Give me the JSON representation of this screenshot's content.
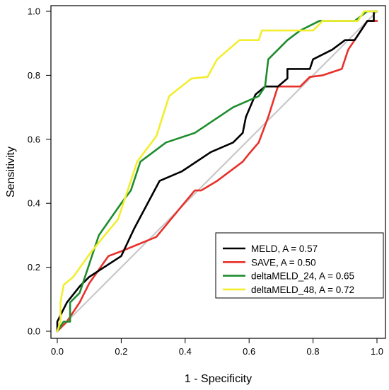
{
  "chart_data": {
    "type": "line",
    "title": "",
    "xlabel": "1 - Specificity",
    "ylabel": "Sensitivity",
    "xlim": [
      0,
      1
    ],
    "ylim": [
      0,
      1
    ],
    "xticks": [
      "0.0",
      "0.2",
      "0.4",
      "0.6",
      "0.8",
      "1.0"
    ],
    "yticks": [
      "0.0",
      "0.2",
      "0.4",
      "0.6",
      "0.8",
      "1.0"
    ],
    "grid": false,
    "legend_position": "bottom-right",
    "reference_line": {
      "color": "#c8c8c8",
      "points": [
        [
          0,
          0
        ],
        [
          1,
          1
        ]
      ]
    },
    "series": [
      {
        "name": "MELD, A = 0.57",
        "color": "#000000",
        "points": [
          [
            0,
            0
          ],
          [
            0,
            0.03
          ],
          [
            0.03,
            0.09
          ],
          [
            0.07,
            0.14
          ],
          [
            0.1,
            0.17
          ],
          [
            0.2,
            0.235
          ],
          [
            0.24,
            0.32
          ],
          [
            0.32,
            0.47
          ],
          [
            0.39,
            0.5
          ],
          [
            0.48,
            0.56
          ],
          [
            0.55,
            0.59
          ],
          [
            0.58,
            0.62
          ],
          [
            0.59,
            0.67
          ],
          [
            0.62,
            0.74
          ],
          [
            0.65,
            0.765
          ],
          [
            0.69,
            0.765
          ],
          [
            0.72,
            0.79
          ],
          [
            0.72,
            0.82
          ],
          [
            0.79,
            0.82
          ],
          [
            0.8,
            0.85
          ],
          [
            0.86,
            0.88
          ],
          [
            0.9,
            0.91
          ],
          [
            0.93,
            0.91
          ],
          [
            0.97,
            0.97
          ],
          [
            0.99,
            0.97
          ],
          [
            0.99,
            1
          ],
          [
            1,
            1
          ]
        ]
      },
      {
        "name": "SAVE, A = 0.50",
        "color": "#e8302a",
        "points": [
          [
            0,
            0
          ],
          [
            0.03,
            0.03
          ],
          [
            0.07,
            0.09
          ],
          [
            0.1,
            0.15
          ],
          [
            0.16,
            0.235
          ],
          [
            0.2,
            0.25
          ],
          [
            0.31,
            0.295
          ],
          [
            0.38,
            0.38
          ],
          [
            0.43,
            0.44
          ],
          [
            0.45,
            0.44
          ],
          [
            0.5,
            0.47
          ],
          [
            0.58,
            0.53
          ],
          [
            0.6,
            0.555
          ],
          [
            0.63,
            0.59
          ],
          [
            0.66,
            0.67
          ],
          [
            0.69,
            0.765
          ],
          [
            0.72,
            0.765
          ],
          [
            0.76,
            0.765
          ],
          [
            0.79,
            0.795
          ],
          [
            0.83,
            0.8
          ],
          [
            0.89,
            0.82
          ],
          [
            0.91,
            0.88
          ],
          [
            0.93,
            0.91
          ],
          [
            0.95,
            0.94
          ],
          [
            0.97,
            0.97
          ],
          [
            1,
            0.97
          ]
        ]
      },
      {
        "name": "deltaMELD_24, A = 0.65",
        "color": "#1e8c2e",
        "points": [
          [
            0,
            0
          ],
          [
            0.02,
            0.03
          ],
          [
            0.04,
            0.03
          ],
          [
            0.04,
            0.09
          ],
          [
            0.07,
            0.12
          ],
          [
            0.13,
            0.3
          ],
          [
            0.2,
            0.4
          ],
          [
            0.23,
            0.44
          ],
          [
            0.26,
            0.53
          ],
          [
            0.34,
            0.59
          ],
          [
            0.43,
            0.62
          ],
          [
            0.55,
            0.7
          ],
          [
            0.63,
            0.735
          ],
          [
            0.65,
            0.765
          ],
          [
            0.66,
            0.85
          ],
          [
            0.72,
            0.91
          ],
          [
            0.76,
            0.94
          ],
          [
            0.82,
            0.97
          ],
          [
            0.93,
            0.97
          ],
          [
            0.97,
            1
          ],
          [
            1,
            1
          ]
        ]
      },
      {
        "name": "deltaMELD_48, A = 0.72",
        "color": "#f2ee2e",
        "points": [
          [
            0,
            0
          ],
          [
            0.01,
            0.03
          ],
          [
            0.01,
            0.09
          ],
          [
            0.02,
            0.145
          ],
          [
            0.05,
            0.17
          ],
          [
            0.1,
            0.24
          ],
          [
            0.14,
            0.29
          ],
          [
            0.19,
            0.35
          ],
          [
            0.25,
            0.53
          ],
          [
            0.31,
            0.61
          ],
          [
            0.35,
            0.735
          ],
          [
            0.42,
            0.79
          ],
          [
            0.47,
            0.795
          ],
          [
            0.5,
            0.85
          ],
          [
            0.57,
            0.91
          ],
          [
            0.63,
            0.91
          ],
          [
            0.64,
            0.94
          ],
          [
            0.7,
            0.94
          ],
          [
            0.8,
            0.94
          ],
          [
            0.83,
            0.97
          ],
          [
            0.94,
            0.97
          ],
          [
            0.96,
            1
          ],
          [
            1,
            1
          ]
        ]
      }
    ]
  }
}
